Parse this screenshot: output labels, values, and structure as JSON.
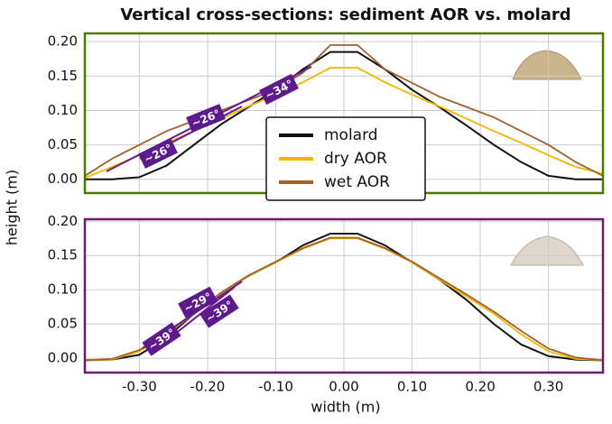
{
  "chart_data": [
    {
      "type": "line",
      "title": "Vertical cross-sections: sediment AOR vs. molard",
      "ylabel": "height (m)",
      "x": [
        -0.38,
        -0.34,
        -0.3,
        -0.26,
        -0.22,
        -0.18,
        -0.14,
        -0.1,
        -0.06,
        -0.02,
        0.02,
        0.06,
        0.1,
        0.14,
        0.18,
        0.22,
        0.26,
        0.3,
        0.34,
        0.38
      ],
      "series": [
        {
          "name": "molard",
          "color": "#111111",
          "values": [
            0,
            0,
            0.003,
            0.02,
            0.05,
            0.08,
            0.105,
            0.13,
            0.16,
            0.185,
            0.185,
            0.16,
            0.13,
            0.105,
            0.078,
            0.05,
            0.025,
            0.005,
            0,
            0
          ]
        },
        {
          "name": "dry AOR",
          "color": "#f5b400",
          "values": [
            0.002,
            0.018,
            0.035,
            0.053,
            0.07,
            0.088,
            0.106,
            0.123,
            0.141,
            0.162,
            0.162,
            0.141,
            0.123,
            0.106,
            0.088,
            0.07,
            0.053,
            0.035,
            0.018,
            0.008
          ]
        },
        {
          "name": "wet AOR",
          "color": "#a0622d",
          "values": [
            0.005,
            0.03,
            0.05,
            0.07,
            0.085,
            0.1,
            0.115,
            0.13,
            0.155,
            0.195,
            0.195,
            0.16,
            0.14,
            0.12,
            0.105,
            0.09,
            0.07,
            0.05,
            0.025,
            0.005
          ]
        }
      ],
      "xlim": [
        -0.38,
        0.38
      ],
      "ylim": [
        -0.02,
        0.212
      ],
      "xticks": [
        -0.3,
        -0.2,
        -0.1,
        0,
        0.1,
        0.2,
        0.3
      ],
      "yticks": [
        {
          "value": 0,
          "label": "0.00"
        },
        {
          "value": 0.05,
          "label": "0.05"
        },
        {
          "value": 0.1,
          "label": "0.10"
        },
        {
          "value": 0.15,
          "label": "0.15"
        },
        {
          "value": 0.2,
          "label": "0.20"
        }
      ],
      "grid": true,
      "legend": "center",
      "frame_color": "#4a7a00",
      "annotations": [
        "~26°",
        "~26°",
        "~34°"
      ]
    },
    {
      "type": "line",
      "xlabel": "width (m)",
      "x": [
        -0.38,
        -0.34,
        -0.3,
        -0.26,
        -0.22,
        -0.18,
        -0.14,
        -0.1,
        -0.06,
        -0.02,
        0.02,
        0.06,
        0.1,
        0.14,
        0.18,
        0.22,
        0.26,
        0.3,
        0.34,
        0.38
      ],
      "series": [
        {
          "name": "molard",
          "color": "#111111",
          "values": [
            -0.003,
            -0.002,
            0.005,
            0.03,
            0.065,
            0.095,
            0.12,
            0.14,
            0.165,
            0.182,
            0.182,
            0.165,
            0.14,
            0.115,
            0.085,
            0.05,
            0.02,
            0.003,
            -0.002,
            -0.003
          ]
        },
        {
          "name": "dry AOR",
          "color": "#f5b400",
          "values": [
            -0.003,
            -0.002,
            0.01,
            0.035,
            0.065,
            0.095,
            0.12,
            0.14,
            0.16,
            0.175,
            0.175,
            0.16,
            0.14,
            0.115,
            0.09,
            0.065,
            0.035,
            0.01,
            -0.001,
            -0.003
          ]
        },
        {
          "name": "wet AOR",
          "color": "#a0622d",
          "values": [
            -0.003,
            -0.001,
            0.012,
            0.037,
            0.066,
            0.096,
            0.121,
            0.141,
            0.161,
            0.176,
            0.176,
            0.161,
            0.141,
            0.117,
            0.093,
            0.068,
            0.04,
            0.014,
            0.001,
            -0.003
          ]
        }
      ],
      "xlim": [
        -0.38,
        0.38
      ],
      "ylim": [
        -0.021,
        0.203
      ],
      "xticks": [
        {
          "value": -0.3,
          "label": "-0.30"
        },
        {
          "value": -0.2,
          "label": "-0.20"
        },
        {
          "value": -0.1,
          "label": "-0.10"
        },
        {
          "value": 0,
          "label": "0.00"
        },
        {
          "value": 0.1,
          "label": "0.10"
        },
        {
          "value": 0.2,
          "label": "0.20"
        },
        {
          "value": 0.3,
          "label": "0.30"
        }
      ],
      "yticks": [
        {
          "value": 0,
          "label": "0.00"
        },
        {
          "value": 0.05,
          "label": "0.05"
        },
        {
          "value": 0.1,
          "label": "0.10"
        },
        {
          "value": 0.15,
          "label": "0.15"
        },
        {
          "value": 0.2,
          "label": "0.20"
        }
      ],
      "grid": true,
      "frame_color": "#6a1b6a",
      "annotations": [
        "~39°",
        "~29°",
        "~39°"
      ]
    }
  ]
}
